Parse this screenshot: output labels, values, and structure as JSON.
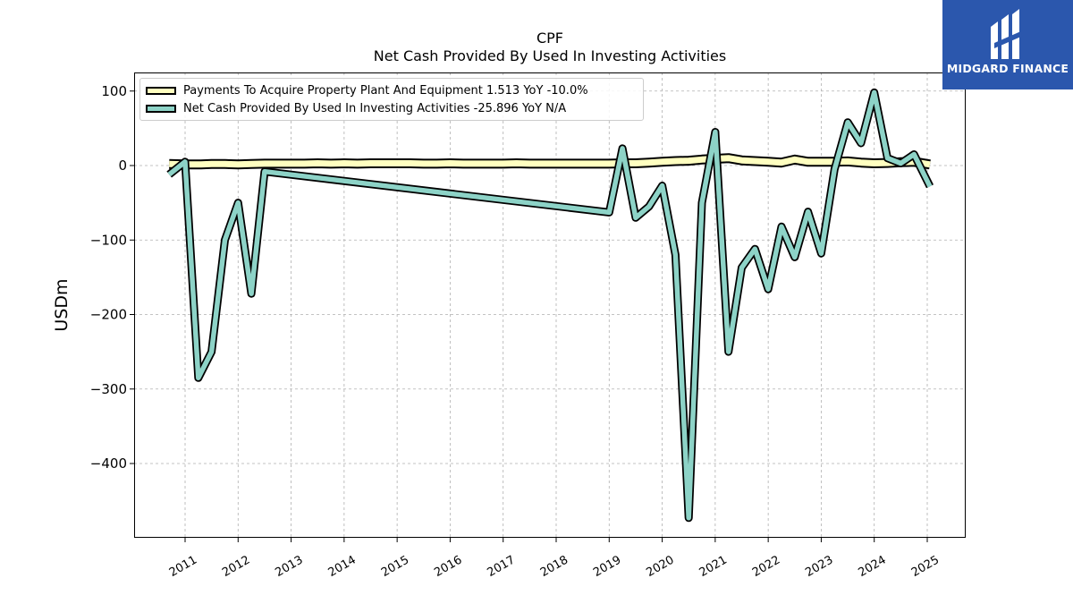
{
  "header": {
    "ticker": "CPF",
    "title": "Net Cash Provided By Used In Investing Activities"
  },
  "logo": {
    "text": "MIDGARD FINANCE",
    "icon": "midgard-finance-logo-icon",
    "color": "#2b57ad"
  },
  "legend": [
    {
      "label": "Payments To Acquire Property Plant And Equipment  1.513 YoY -10.0%",
      "color": "#ffffc0"
    },
    {
      "label": "Net Cash Provided By Used In Investing Activities  -25.896 YoY N/A",
      "color": "#8dd3c7"
    }
  ],
  "chart_data": {
    "type": "line",
    "ylabel": "USDm",
    "xlabel": "",
    "ylim": [
      -500,
      125
    ],
    "xlim": [
      2010.05,
      2025.7
    ],
    "yticks": [
      100,
      0,
      -100,
      -200,
      -300,
      -400
    ],
    "ytick_labels": [
      "100",
      "0",
      "−100",
      "−200",
      "−300",
      "−400"
    ],
    "xticks": [
      2011,
      2012,
      2013,
      2014,
      2015,
      2016,
      2017,
      2018,
      2019,
      2020,
      2021,
      2022,
      2023,
      2024,
      2025
    ],
    "grid": true,
    "legend_position": "top-left",
    "series": [
      {
        "name": "Payments To Acquire Property Plant And Equipment  1.513 YoY -10.0%",
        "color": "#ffffc0",
        "style": "band",
        "x": [
          2010.7,
          2011.0,
          2011.3,
          2011.5,
          2011.75,
          2012.0,
          2012.25,
          2012.5,
          2012.75,
          2013.0,
          2013.25,
          2013.5,
          2013.75,
          2014.0,
          2014.25,
          2014.5,
          2014.75,
          2015.0,
          2015.25,
          2015.5,
          2015.75,
          2016.0,
          2016.25,
          2016.5,
          2016.75,
          2017.0,
          2017.25,
          2017.5,
          2017.75,
          2018.0,
          2018.25,
          2018.5,
          2018.75,
          2019.0,
          2019.25,
          2019.5,
          2019.75,
          2020.0,
          2020.25,
          2020.5,
          2020.75,
          2021.0,
          2021.25,
          2021.5,
          2021.75,
          2022.0,
          2022.25,
          2022.5,
          2022.75,
          2023.0,
          2023.25,
          2023.5,
          2023.75,
          2024.0,
          2024.25,
          2024.5,
          2024.75,
          2025.05
        ],
        "values": [
          2,
          1.5,
          1.5,
          2,
          2,
          1.5,
          2,
          2.5,
          2.5,
          2.5,
          2.5,
          3,
          2.5,
          3,
          2.5,
          3,
          3,
          3,
          3,
          2.5,
          2.5,
          3,
          2.5,
          2.5,
          2.5,
          2.5,
          3,
          2.5,
          2.5,
          2.5,
          2.5,
          2.5,
          2.5,
          2.5,
          3,
          3,
          4,
          5,
          6,
          6.5,
          8,
          9,
          10,
          7,
          6,
          5,
          4,
          8,
          5,
          5,
          5,
          5.5,
          4,
          3,
          3.5,
          4.5,
          5,
          1.5
        ]
      },
      {
        "name": "Net Cash Provided By Used In Investing Activities  -25.896 YoY N/A",
        "color": "#8dd3c7",
        "style": "line",
        "x": [
          2010.7,
          2011.0,
          2011.25,
          2011.5,
          2011.75,
          2012.0,
          2012.25,
          2012.5,
          2019.0,
          2019.25,
          2019.5,
          2019.75,
          2020.0,
          2020.25,
          2020.5,
          2020.75,
          2021.0,
          2021.25,
          2021.5,
          2021.75,
          2022.0,
          2022.25,
          2022.5,
          2022.75,
          2023.0,
          2023.25,
          2023.5,
          2023.75,
          2024.0,
          2024.25,
          2024.5,
          2024.75,
          2025.05
        ],
        "values": [
          -12,
          5,
          -285,
          -250,
          -100,
          -50,
          -172,
          -8,
          -63,
          23,
          -70,
          -55,
          -27,
          -120,
          -473,
          -50,
          45,
          -250,
          -137,
          -112,
          -166,
          -82,
          -123,
          -62,
          -118,
          -5,
          58,
          30,
          98,
          10,
          3,
          15,
          -28
        ]
      }
    ]
  }
}
